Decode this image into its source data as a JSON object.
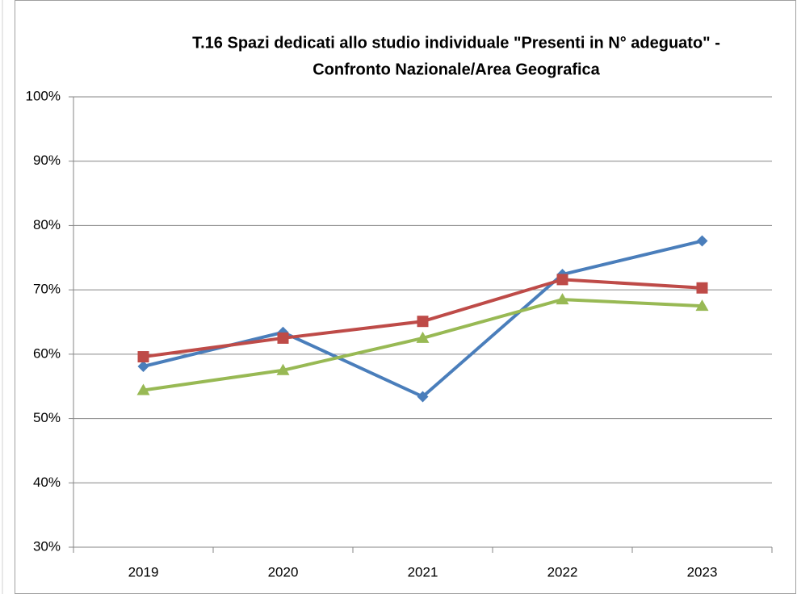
{
  "chart_data": {
    "type": "line",
    "title": [
      "T.16 Spazi dedicati allo studio individuale \"Presenti in N° adeguato\" -",
      "Confronto Nazionale/Area Geografica"
    ],
    "categories": [
      "2019",
      "2020",
      "2021",
      "2022",
      "2023"
    ],
    "series": [
      {
        "color": "#4a7ebb",
        "marker": "diamond",
        "values": [
          58.1,
          63.4,
          53.4,
          72.4,
          77.6
        ]
      },
      {
        "color": "#be4b48",
        "marker": "square",
        "values": [
          59.6,
          62.5,
          65.1,
          71.6,
          70.3
        ]
      },
      {
        "color": "#98b954",
        "marker": "triangle",
        "values": [
          54.4,
          57.5,
          62.5,
          68.5,
          67.5
        ]
      }
    ],
    "ylim": [
      30,
      100
    ],
    "yticks": [
      {
        "value": 30,
        "label": "30%"
      },
      {
        "value": 40,
        "label": "40%"
      },
      {
        "value": 50,
        "label": "50%"
      },
      {
        "value": 60,
        "label": "60%"
      },
      {
        "value": 70,
        "label": "70%"
      },
      {
        "value": 80,
        "label": "80%"
      },
      {
        "value": 90,
        "label": "90%"
      },
      {
        "value": 100,
        "label": "100%"
      }
    ],
    "grid": true
  }
}
